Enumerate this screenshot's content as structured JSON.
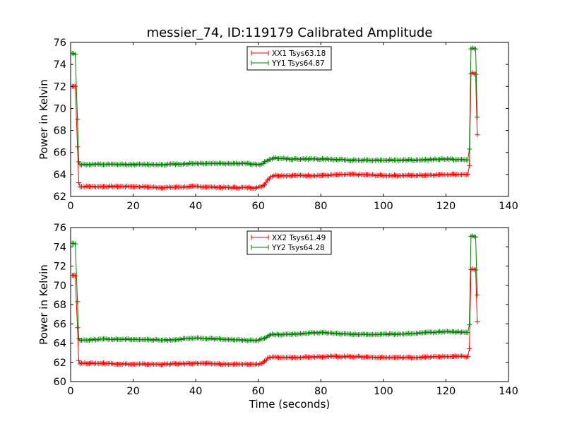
{
  "chart_data": {
    "title": "messier_74, ID:119179 Calibrated Amplitude",
    "xlabel": "Time (seconds)",
    "type": "line",
    "panels": [
      {
        "ylabel": "Power in Kelvin",
        "xlim": [
          0,
          140
        ],
        "ylim": [
          62,
          76
        ],
        "xticks": [
          0,
          20,
          40,
          60,
          80,
          100,
          120,
          140
        ],
        "yticks": [
          62,
          64,
          66,
          68,
          70,
          72,
          74,
          76
        ],
        "legend_position": "upper-center",
        "series": [
          {
            "name": "XX1 Tsys63.18",
            "color": "#ff0000",
            "x": [
              0.5,
              1.5,
              2.2,
              2.6,
              3,
              10,
              20,
              30,
              40,
              50,
              55,
              60,
              61,
              62,
              63,
              64,
              65,
              70,
              80,
              90,
              100,
              110,
              120,
              127,
              127.5,
              128,
              128.5,
              129.5,
              130
            ],
            "y": [
              72.0,
              72.0,
              66.5,
              63.3,
              62.9,
              62.9,
              62.9,
              62.8,
              62.9,
              62.8,
              62.8,
              62.8,
              62.9,
              63.1,
              63.5,
              63.8,
              63.9,
              63.9,
              63.9,
              64.0,
              63.9,
              63.9,
              64.0,
              64.0,
              64.8,
              73.1,
              73.2,
              73.1,
              67.6
            ]
          },
          {
            "name": "YY1 Tsys64.87",
            "color": "#007f00",
            "x": [
              0.5,
              1.5,
              2.2,
              2.6,
              3,
              10,
              20,
              30,
              40,
              50,
              55,
              60,
              61,
              62,
              63,
              64,
              65,
              70,
              80,
              90,
              100,
              110,
              120,
              127,
              127.5,
              128,
              128.5,
              129.5,
              130
            ],
            "y": [
              75.0,
              74.9,
              69.0,
              65.2,
              64.9,
              64.9,
              64.9,
              64.9,
              65.0,
              65.0,
              65.0,
              64.9,
              64.9,
              65.1,
              65.3,
              65.4,
              65.5,
              65.4,
              65.4,
              65.3,
              65.3,
              65.3,
              65.4,
              65.3,
              66.3,
              75.4,
              75.5,
              75.4,
              69.2
            ]
          }
        ]
      },
      {
        "ylabel": "Power in Kelvin",
        "xlim": [
          0,
          140
        ],
        "ylim": [
          60,
          76
        ],
        "xticks": [
          0,
          20,
          40,
          60,
          80,
          100,
          120,
          140
        ],
        "yticks": [
          60,
          62,
          64,
          66,
          68,
          70,
          72,
          74,
          76
        ],
        "legend_position": "upper-center",
        "series": [
          {
            "name": "XX2 Tsys61.49",
            "color": "#ff0000",
            "x": [
              0.5,
              1.5,
              2.2,
              2.6,
              3,
              10,
              20,
              30,
              40,
              50,
              55,
              60,
              61,
              62,
              63,
              64,
              65,
              70,
              80,
              90,
              100,
              110,
              120,
              127,
              127.5,
              128,
              128.5,
              129.5,
              130
            ],
            "y": [
              71.1,
              71.0,
              65.6,
              62.2,
              61.9,
              61.9,
              61.8,
              61.8,
              61.9,
              61.8,
              61.8,
              61.8,
              61.9,
              62.1,
              62.4,
              62.5,
              62.5,
              62.5,
              62.6,
              62.6,
              62.5,
              62.5,
              62.6,
              62.6,
              63.4,
              71.6,
              71.7,
              71.6,
              66.2
            ]
          },
          {
            "name": "YY2 Tsys64.28",
            "color": "#007f00",
            "x": [
              0.5,
              1.5,
              2.2,
              2.6,
              3,
              10,
              20,
              30,
              40,
              50,
              55,
              60,
              61,
              62,
              63,
              64,
              65,
              70,
              80,
              90,
              100,
              110,
              120,
              127,
              127.5,
              128,
              128.5,
              129.5,
              130
            ],
            "y": [
              74.4,
              74.3,
              68.3,
              64.5,
              64.3,
              64.4,
              64.4,
              64.3,
              64.5,
              64.4,
              64.3,
              64.3,
              64.4,
              64.5,
              64.7,
              64.9,
              64.9,
              64.9,
              65.1,
              64.9,
              64.9,
              65.0,
              65.2,
              65.1,
              65.9,
              75.1,
              75.1,
              75.0,
              69.0
            ]
          }
        ]
      }
    ]
  }
}
